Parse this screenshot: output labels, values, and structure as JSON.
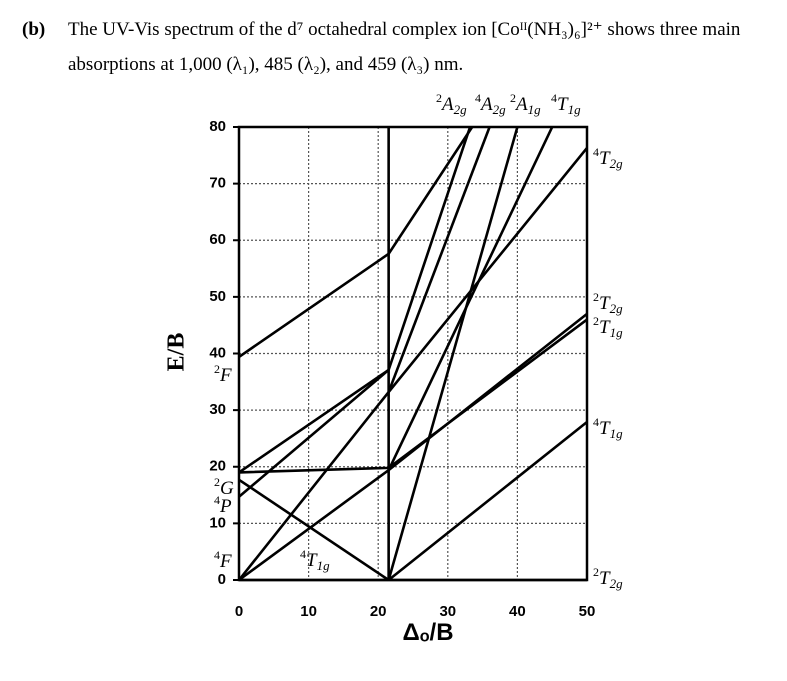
{
  "header": {
    "label": "(b)",
    "text": "The UV-Vis spectrum of the d⁷ octahedral complex ion [Coᴵᴵ(NH₃)₆]²⁺ shows three main absorptions at 1,000 (λ₁), 485 (λ₂), and 459 (λ₃) nm."
  },
  "chart_data": {
    "type": "line",
    "x_label": "Δₒ/B",
    "y_label": "E/B",
    "color": "#000000",
    "grid": true,
    "xlim": [
      0,
      50
    ],
    "ylim": [
      0,
      80
    ],
    "xticks": [
      0,
      10,
      20,
      30,
      40,
      50
    ],
    "yticks": [
      0,
      10,
      20,
      30,
      40,
      50,
      60,
      70,
      80
    ],
    "series": [
      {
        "x": [
          0,
          21.5,
          50
        ],
        "values": [
          0,
          0,
          0
        ]
      },
      {
        "x": [
          0,
          21.5,
          50
        ],
        "values": [
          0,
          33.2,
          76.3
        ]
      },
      {
        "x": [
          0,
          21.5,
          50
        ],
        "values": [
          0,
          19.4,
          47
        ]
      },
      {
        "x": [
          0,
          21.5,
          50
        ],
        "values": [
          19,
          19.8,
          46
        ]
      },
      {
        "x": [
          0,
          21.5
        ],
        "values": [
          17.7,
          0
        ]
      },
      {
        "x": [
          0,
          21.5,
          33.2
        ],
        "values": [
          14.7,
          37.1,
          80
        ]
      },
      {
        "x": [
          0,
          21.5
        ],
        "values": [
          19,
          37.1
        ]
      },
      {
        "x": [
          0,
          21.5,
          33.5
        ],
        "values": [
          39.4,
          57.6,
          80
        ]
      },
      {
        "x": [
          21.5,
          50
        ],
        "values": [
          0,
          27.9
        ]
      },
      {
        "x": [
          21.5,
          40
        ],
        "values": [
          0,
          80
        ]
      },
      {
        "x": [
          21.5,
          45
        ],
        "values": [
          19.4,
          80
        ]
      },
      {
        "x": [
          21.5,
          36
        ],
        "values": [
          33.2,
          80
        ]
      },
      {
        "x": [
          21.5,
          21.5
        ],
        "values": [
          0,
          80
        ]
      }
    ],
    "annotations": [
      {
        "sup": "2",
        "main": "F"
      },
      {
        "sup": "2",
        "main": "G"
      },
      {
        "sup": "4",
        "main": "P"
      },
      {
        "sup": "4",
        "main": "F"
      },
      {
        "sup": "4",
        "main": "T",
        "sub": "1g"
      },
      {
        "sup": "2",
        "main": "A",
        "sub": "2g"
      },
      {
        "sup": "4",
        "main": "A",
        "sub": "2g"
      },
      {
        "sup": "2",
        "main": "A",
        "sub": "1g"
      },
      {
        "sup": "4",
        "main": "T",
        "sub": "1g"
      },
      {
        "sup": "4",
        "main": "T",
        "sub": "2g"
      },
      {
        "sup": "2",
        "main": "T",
        "sub": "2g"
      },
      {
        "sup": "2",
        "main": "T",
        "sub": "1g"
      },
      {
        "sup": "4",
        "main": "T",
        "sub": "1g"
      },
      {
        "sup": "2",
        "main": "T",
        "sub": "2g"
      }
    ]
  }
}
